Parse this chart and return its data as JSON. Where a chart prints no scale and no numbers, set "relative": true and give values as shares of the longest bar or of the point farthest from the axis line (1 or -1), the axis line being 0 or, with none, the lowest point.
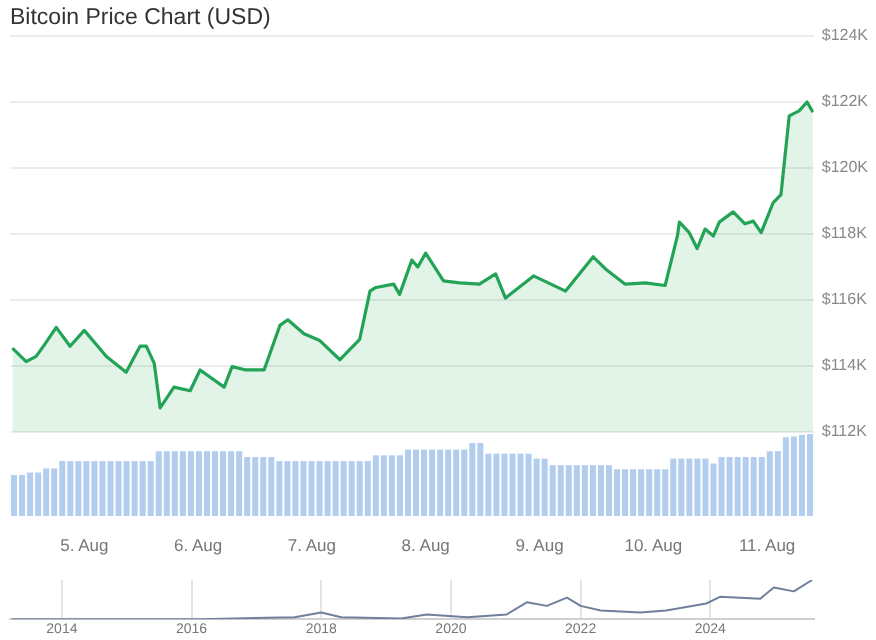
{
  "chart_data": [
    {
      "type": "area",
      "title": "Bitcoin Price Chart (USD)",
      "color": "#22a355",
      "x": [
        "--08-04T08:50",
        "--08-04T11:45",
        "--08-04T13:50",
        "--08-04T15:35",
        "--08-04T18:05",
        "--08-04T21:00",
        "--08-05T00:00",
        "--08-05T04:40",
        "--08-05T08:50",
        "--08-05T11:45",
        "--08-05T13:05",
        "--08-05T14:45",
        "--08-05T16:00",
        "--08-05T18:55",
        "--08-05T22:20",
        "--08-06T00:25",
        "--08-06T05:30",
        "--08-06T07:10",
        "--08-06T10:05",
        "--08-06T13:55",
        "--08-06T17:15",
        "--08-06T18:55",
        "--08-06T22:20",
        "--08-07T01:40",
        "--08-07T05:55",
        "--08-07T10:05",
        "--08-07T12:15",
        "--08-07T13:30",
        "--08-07T17:15",
        "--08-07T18:30",
        "--08-07T21:05",
        "--08-07T22:20",
        "--08-08T00:00",
        "--08-08T03:45",
        "--08-08T07:10",
        "--08-08T11:20",
        "--08-08T14:45",
        "--08-08T16:50",
        "--08-08T22:45",
        "--08-09T05:30",
        "--08-09T11:20",
        "--08-09T13:55",
        "--08-09T18:05",
        "--08-09T22:20",
        "--08-10T02:30",
        "--08-10T05:05",
        "--08-10T05:30",
        "--08-10T07:35",
        "--08-10T09:15",
        "--08-10T10:55",
        "--08-10T12:40",
        "--08-10T13:55",
        "--08-10T16:50",
        "--08-10T19:20",
        "--08-10T21:05",
        "--08-10T22:45",
        "--08-11T01:15",
        "--08-11T02:55",
        "--08-11T04:40",
        "--08-11T06:45",
        "--08-11T08:25",
        "--08-11T09:40"
      ],
      "values": [
        114540,
        114130,
        114290,
        114640,
        115170,
        114600,
        115080,
        114290,
        113810,
        114600,
        114600,
        114080,
        112730,
        113360,
        113250,
        113880,
        113360,
        113980,
        113880,
        113880,
        115230,
        115400,
        114980,
        114770,
        114190,
        114810,
        116270,
        116380,
        116480,
        116170,
        117210,
        117000,
        117420,
        116580,
        116520,
        116480,
        116790,
        116060,
        116730,
        116270,
        117310,
        116940,
        116480,
        116520,
        116440,
        117940,
        118360,
        118040,
        117560,
        118150,
        117940,
        118360,
        118670,
        118310,
        118390,
        118040,
        118940,
        119190,
        121580,
        121730,
        122000,
        121690
      ],
      "xlim": [
        "--08-04T08:20",
        "--08-11T09:50"
      ],
      "xticks": [
        {
          "value": "--08-05",
          "label": "5. Aug"
        },
        {
          "value": "--08-06",
          "label": "6. Aug"
        },
        {
          "value": "--08-07",
          "label": "7. Aug"
        },
        {
          "value": "--08-08",
          "label": "8. Aug"
        },
        {
          "value": "--08-09",
          "label": "9. Aug"
        },
        {
          "value": "--08-10",
          "label": "10. Aug"
        },
        {
          "value": "--08-11",
          "label": "11. Aug"
        }
      ],
      "ylim": [
        112000,
        124000
      ],
      "yticks": [
        {
          "value": 112000,
          "label": "$112K"
        },
        {
          "value": 114000,
          "label": "$114K"
        },
        {
          "value": 116000,
          "label": "$116K"
        },
        {
          "value": 118000,
          "label": "$118K"
        },
        {
          "value": 120000,
          "label": "$120K"
        },
        {
          "value": 122000,
          "label": "$122K"
        },
        {
          "value": 124000,
          "label": "$124K"
        }
      ],
      "grid": "y"
    },
    {
      "type": "bar",
      "relative": true,
      "tick_labels": false,
      "color": "#b3cdef",
      "categories": [
        null,
        null,
        null,
        null,
        null,
        null,
        null,
        null,
        null,
        null,
        null,
        null,
        null,
        null,
        null,
        null,
        null,
        null,
        null,
        null,
        null,
        null,
        null,
        null,
        null,
        null,
        null,
        null,
        null,
        null,
        null,
        null,
        null,
        null,
        null,
        null,
        null,
        null,
        null,
        null,
        null,
        null,
        null,
        null,
        null,
        null,
        null,
        null,
        null,
        null,
        null,
        null,
        null,
        null,
        null,
        null,
        null,
        null,
        null,
        null,
        null,
        null,
        null,
        null,
        null,
        null,
        null,
        null,
        null,
        null,
        null,
        null,
        null,
        null,
        null,
        null,
        null,
        null,
        null,
        null,
        null,
        null,
        null,
        null,
        null,
        null,
        null,
        null,
        null,
        null,
        null,
        null,
        null,
        null,
        null,
        null,
        null,
        null,
        null,
        null
      ],
      "values": [
        0.5,
        0.5,
        0.53,
        0.53,
        0.58,
        0.58,
        0.67,
        0.67,
        0.67,
        0.67,
        0.67,
        0.67,
        0.67,
        0.67,
        0.67,
        0.67,
        0.67,
        0.67,
        0.79,
        0.79,
        0.79,
        0.79,
        0.79,
        0.79,
        0.79,
        0.79,
        0.79,
        0.79,
        0.79,
        0.72,
        0.72,
        0.72,
        0.72,
        0.67,
        0.67,
        0.67,
        0.67,
        0.67,
        0.67,
        0.67,
        0.67,
        0.67,
        0.67,
        0.67,
        0.67,
        0.74,
        0.74,
        0.74,
        0.74,
        0.81,
        0.81,
        0.81,
        0.81,
        0.81,
        0.81,
        0.81,
        0.81,
        0.89,
        0.89,
        0.76,
        0.76,
        0.76,
        0.76,
        0.76,
        0.76,
        0.7,
        0.7,
        0.62,
        0.62,
        0.62,
        0.62,
        0.62,
        0.62,
        0.62,
        0.62,
        0.57,
        0.57,
        0.57,
        0.57,
        0.57,
        0.57,
        0.57,
        0.7,
        0.7,
        0.7,
        0.7,
        0.7,
        0.64,
        0.72,
        0.72,
        0.72,
        0.72,
        0.72,
        0.72,
        0.79,
        0.79,
        0.96,
        0.97,
        0.99,
        1
      ]
    },
    {
      "type": "line",
      "relative": true,
      "tick_labels": "x",
      "grid": "x",
      "color": "#6f7f9c",
      "x": [
        2013.23,
        2016.15,
        2017.59,
        2018.0,
        2018.31,
        2019.23,
        2019.63,
        2020.25,
        2020.86,
        2021.17,
        2021.48,
        2021.79,
        2022.0,
        2022.31,
        2022.92,
        2023.32,
        2023.94,
        2024.15,
        2024.77,
        2024.98,
        2025.29,
        2025.57
      ],
      "values": [
        0,
        0,
        0.05,
        0.17,
        0.05,
        0.02,
        0.12,
        0.05,
        0.12,
        0.43,
        0.34,
        0.55,
        0.34,
        0.22,
        0.17,
        0.22,
        0.4,
        0.57,
        0.52,
        0.81,
        0.71,
        1
      ],
      "xlim": [
        2013.2,
        2025.6
      ],
      "xticks": [
        2014,
        2016,
        2018,
        2020,
        2022,
        2024
      ]
    }
  ]
}
